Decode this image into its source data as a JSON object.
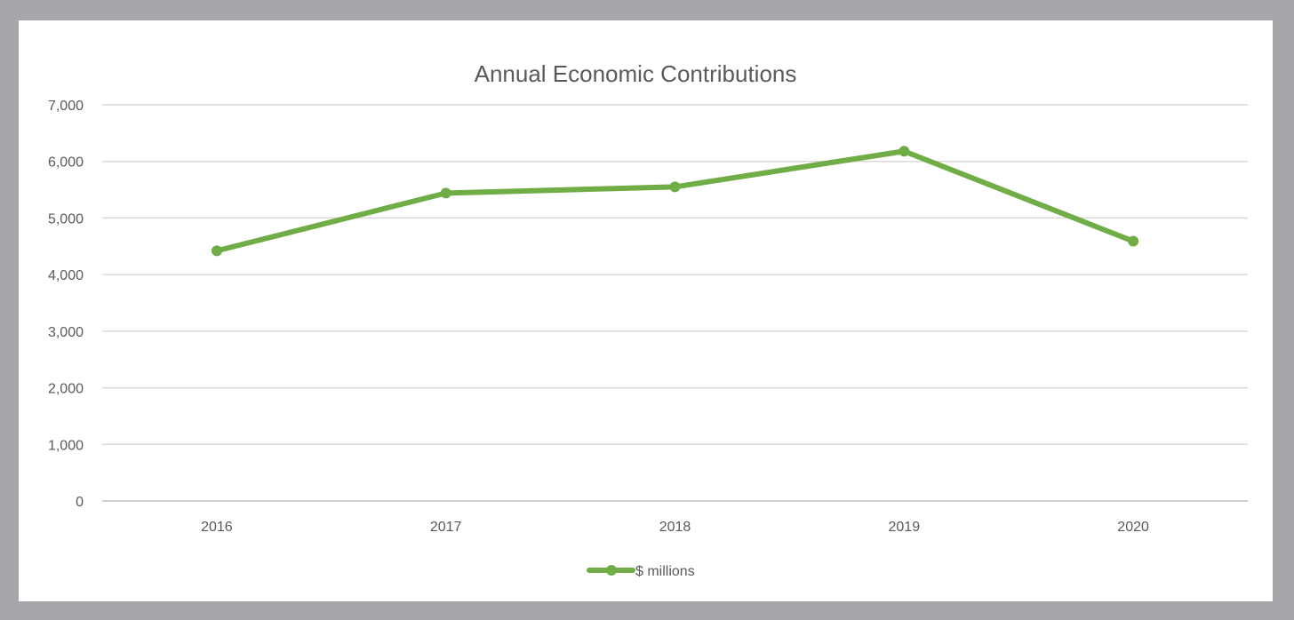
{
  "chart_data": {
    "type": "line",
    "title": "Annual Economic Contributions",
    "xlabel": "",
    "ylabel": "",
    "categories": [
      "2016",
      "2017",
      "2018",
      "2019",
      "2020"
    ],
    "series": [
      {
        "name": "$ millions",
        "values": [
          4420,
          5440,
          5550,
          6180,
          4590
        ],
        "color": "#70ad47"
      }
    ],
    "ylim": [
      0,
      7000
    ],
    "y_ticks": [
      "0",
      "1,000",
      "2,000",
      "3,000",
      "4,000",
      "5,000",
      "6,000",
      "7,000"
    ],
    "grid": true,
    "legend_position": "bottom"
  }
}
